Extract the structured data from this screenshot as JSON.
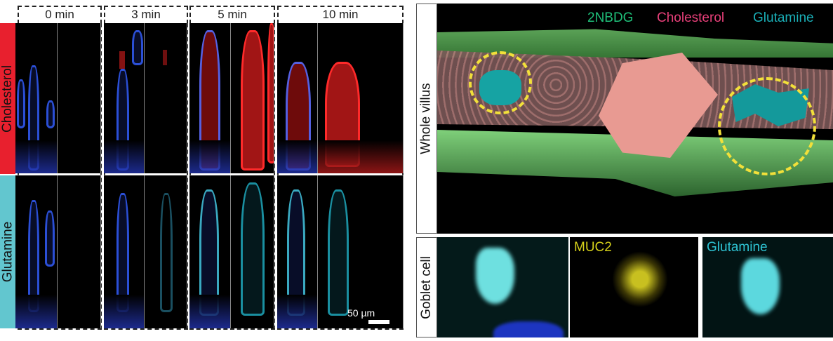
{
  "left_panel": {
    "columns": [
      "0 min",
      "3 min",
      "5 min",
      "10 min"
    ],
    "rows": [
      {
        "label": "Cholesterol",
        "color": "#e8202e"
      },
      {
        "label": "Glutamine",
        "color": "#62c6cf"
      }
    ],
    "scale_bar": "50 µm"
  },
  "right_panel": {
    "whole_villus": {
      "label": "Whole villus",
      "legend": [
        {
          "label": "2NBDG",
          "color": "#1fc07a"
        },
        {
          "label": "Cholesterol",
          "color": "#e8407a"
        },
        {
          "label": "Glutamine",
          "color": "#1ab0b8"
        }
      ]
    },
    "goblet_cell": {
      "label": "Goblet cell",
      "panels": [
        {
          "label": ""
        },
        {
          "label": "MUC2",
          "color": "#d6d21a"
        },
        {
          "label": "Glutamine",
          "color": "#2ec4d4"
        }
      ]
    }
  }
}
